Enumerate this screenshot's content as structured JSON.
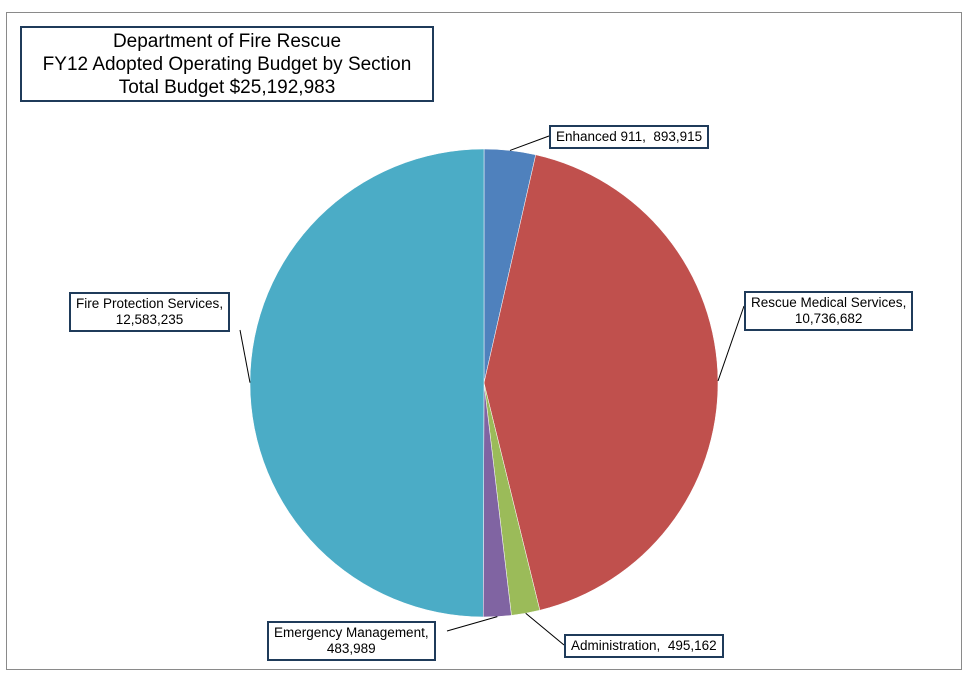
{
  "chart_data": {
    "type": "pie",
    "title_lines": [
      "Department of Fire Rescue",
      "FY12 Adopted Operating Budget by Section",
      "Total Budget $25,192,983"
    ],
    "slices": [
      {
        "label": "Enhanced 911",
        "value": 893915,
        "value_text": "893,915",
        "color": "#4f81bd"
      },
      {
        "label": "Rescue Medical Services",
        "value": 10736682,
        "value_text": "10,736,682",
        "color": "#c0504d"
      },
      {
        "label": "Administration",
        "value": 495162,
        "value_text": "495,162",
        "color": "#9bbb59"
      },
      {
        "label": "Emergency Management",
        "value": 483989,
        "value_text": "483,989",
        "color": "#8064a2"
      },
      {
        "label": "Fire Protection Services",
        "value": 12583235,
        "value_text": "12,583,235",
        "color": "#4bacc6"
      }
    ],
    "start_angle": "12 o'clock",
    "direction": "clockwise",
    "legend": "none"
  }
}
